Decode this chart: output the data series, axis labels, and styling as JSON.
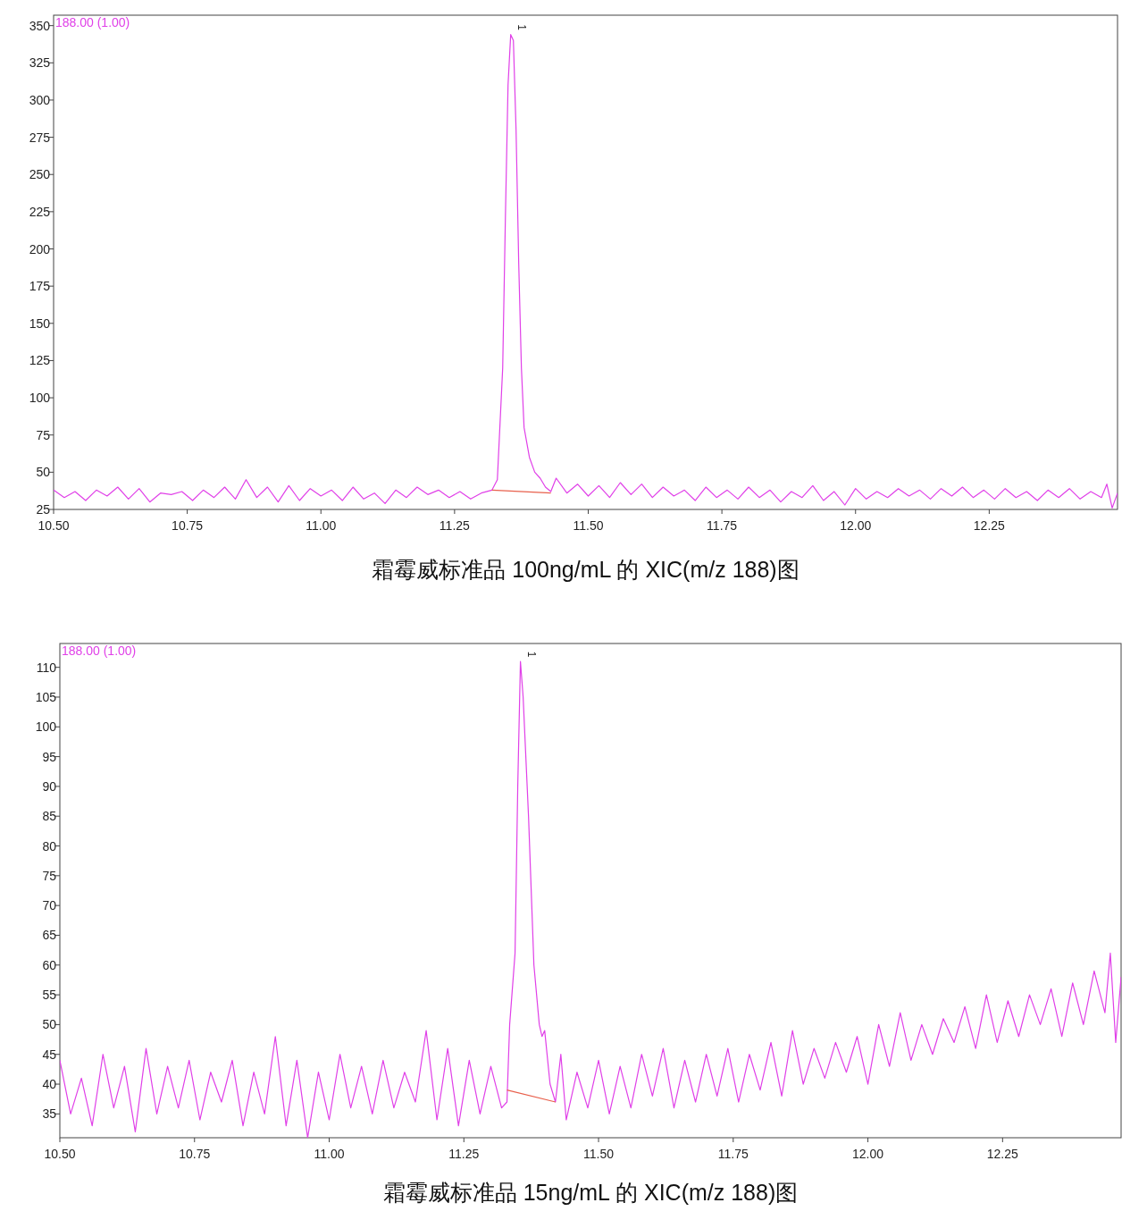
{
  "chart_data": [
    {
      "type": "line",
      "title": "霜霉威标准品 100ng/mL 的 XIC(m/z 188)图",
      "xlim": [
        10.5,
        12.49
      ],
      "ylim": [
        25,
        357
      ],
      "xticks": [
        {
          "value": 10.5,
          "label": "10.50"
        },
        {
          "value": 10.75,
          "label": "10.75"
        },
        {
          "value": 11.0,
          "label": "11.00"
        },
        {
          "value": 11.25,
          "label": "11.25"
        },
        {
          "value": 11.5,
          "label": "11.50"
        },
        {
          "value": 11.75,
          "label": "11.75"
        },
        {
          "value": 12.0,
          "label": "12.00"
        },
        {
          "value": 12.25,
          "label": "12.25"
        }
      ],
      "yticks": [
        25,
        50,
        75,
        100,
        125,
        150,
        175,
        200,
        225,
        250,
        275,
        300,
        325,
        350
      ],
      "annotations": [
        "188.00 (1.00)",
        {
          "text": "1",
          "x": 11.355,
          "y": 344
        }
      ],
      "series": [
        {
          "color": "#e040e8",
          "x": [
            10.5,
            10.52,
            10.54,
            10.56,
            10.58,
            10.6,
            10.62,
            10.64,
            10.66,
            10.68,
            10.7,
            10.72,
            10.74,
            10.76,
            10.78,
            10.8,
            10.82,
            10.84,
            10.86,
            10.88,
            10.9,
            10.92,
            10.94,
            10.96,
            10.98,
            11.0,
            11.02,
            11.04,
            11.06,
            11.08,
            11.1,
            11.12,
            11.14,
            11.16,
            11.18,
            11.2,
            11.22,
            11.24,
            11.26,
            11.28,
            11.3,
            11.32,
            11.33,
            11.34,
            11.345,
            11.35,
            11.355,
            11.36,
            11.365,
            11.37,
            11.375,
            11.38,
            11.385,
            11.39,
            11.4,
            11.41,
            11.42,
            11.43,
            11.44,
            11.46,
            11.48,
            11.5,
            11.52,
            11.54,
            11.56,
            11.58,
            11.6,
            11.62,
            11.64,
            11.66,
            11.68,
            11.7,
            11.72,
            11.74,
            11.76,
            11.78,
            11.8,
            11.82,
            11.84,
            11.86,
            11.88,
            11.9,
            11.92,
            11.94,
            11.96,
            11.98,
            12.0,
            12.02,
            12.04,
            12.06,
            12.08,
            12.1,
            12.12,
            12.14,
            12.16,
            12.18,
            12.2,
            12.22,
            12.24,
            12.26,
            12.28,
            12.3,
            12.32,
            12.34,
            12.36,
            12.38,
            12.4,
            12.42,
            12.44,
            12.46,
            12.47,
            12.48,
            12.49
          ],
          "values": [
            38,
            33,
            37,
            31,
            38,
            34,
            40,
            32,
            39,
            30,
            36,
            35,
            37,
            31,
            38,
            33,
            40,
            32,
            45,
            33,
            40,
            30,
            41,
            31,
            39,
            34,
            38,
            31,
            40,
            32,
            36,
            29,
            38,
            33,
            40,
            35,
            38,
            33,
            37,
            32,
            36,
            38,
            45,
            120,
            220,
            310,
            344,
            340,
            280,
            190,
            120,
            80,
            70,
            60,
            50,
            46,
            40,
            37,
            46,
            36,
            42,
            34,
            41,
            33,
            43,
            35,
            42,
            33,
            40,
            34,
            38,
            31,
            40,
            33,
            38,
            32,
            40,
            33,
            38,
            30,
            37,
            33,
            41,
            31,
            37,
            28,
            39,
            32,
            37,
            33,
            39,
            34,
            38,
            32,
            39,
            34,
            40,
            33,
            38,
            32,
            39,
            33,
            37,
            31,
            38,
            33,
            39,
            32,
            37,
            33,
            42,
            26,
            36
          ]
        },
        {
          "color": "#e8604c",
          "x": [
            11.32,
            11.43
          ],
          "values": [
            38,
            36
          ]
        }
      ]
    },
    {
      "type": "line",
      "title": "霜霉威标准品 15ng/mL 的 XIC(m/z 188)图",
      "xlim": [
        10.5,
        12.47
      ],
      "ylim": [
        31,
        114
      ],
      "xticks": [
        {
          "value": 10.5,
          "label": "10.50"
        },
        {
          "value": 10.75,
          "label": "10.75"
        },
        {
          "value": 11.0,
          "label": "11.00"
        },
        {
          "value": 11.25,
          "label": "11.25"
        },
        {
          "value": 11.5,
          "label": "11.50"
        },
        {
          "value": 11.75,
          "label": "11.75"
        },
        {
          "value": 12.0,
          "label": "12.00"
        },
        {
          "value": 12.25,
          "label": "12.25"
        }
      ],
      "yticks": [
        35,
        40,
        45,
        50,
        55,
        60,
        65,
        70,
        75,
        80,
        85,
        90,
        95,
        100,
        105,
        110
      ],
      "annotations": [
        "188.00 (1.00)",
        {
          "text": "1",
          "x": 11.355,
          "y": 111
        }
      ],
      "series": [
        {
          "color": "#e040e8",
          "x": [
            10.5,
            10.52,
            10.54,
            10.56,
            10.58,
            10.6,
            10.62,
            10.64,
            10.66,
            10.68,
            10.7,
            10.72,
            10.74,
            10.76,
            10.78,
            10.8,
            10.82,
            10.84,
            10.86,
            10.88,
            10.9,
            10.92,
            10.94,
            10.96,
            10.98,
            11.0,
            11.02,
            11.04,
            11.06,
            11.08,
            11.1,
            11.12,
            11.14,
            11.16,
            11.18,
            11.2,
            11.22,
            11.24,
            11.26,
            11.28,
            11.3,
            11.32,
            11.33,
            11.335,
            11.345,
            11.35,
            11.355,
            11.36,
            11.37,
            11.38,
            11.39,
            11.395,
            11.4,
            11.41,
            11.42,
            11.43,
            11.44,
            11.46,
            11.48,
            11.5,
            11.52,
            11.54,
            11.56,
            11.58,
            11.6,
            11.62,
            11.64,
            11.66,
            11.68,
            11.7,
            11.72,
            11.74,
            11.76,
            11.78,
            11.8,
            11.82,
            11.84,
            11.86,
            11.88,
            11.9,
            11.92,
            11.94,
            11.96,
            11.98,
            12.0,
            12.02,
            12.04,
            12.06,
            12.08,
            12.1,
            12.12,
            12.14,
            12.16,
            12.18,
            12.2,
            12.22,
            12.24,
            12.26,
            12.28,
            12.3,
            12.32,
            12.34,
            12.36,
            12.38,
            12.4,
            12.42,
            12.44,
            12.45,
            12.46,
            12.47
          ],
          "values": [
            44,
            35,
            41,
            33,
            45,
            36,
            43,
            32,
            46,
            35,
            43,
            36,
            44,
            34,
            42,
            37,
            44,
            33,
            42,
            35,
            48,
            33,
            44,
            31,
            42,
            34,
            45,
            36,
            43,
            35,
            44,
            36,
            42,
            37,
            49,
            34,
            46,
            33,
            44,
            35,
            43,
            36,
            37,
            50,
            62,
            90,
            111,
            105,
            85,
            60,
            50,
            48,
            49,
            40,
            37,
            45,
            34,
            42,
            36,
            44,
            35,
            43,
            36,
            45,
            38,
            46,
            36,
            44,
            37,
            45,
            38,
            46,
            37,
            45,
            39,
            47,
            38,
            49,
            40,
            46,
            41,
            47,
            42,
            48,
            40,
            50,
            43,
            52,
            44,
            50,
            45,
            51,
            47,
            53,
            46,
            55,
            47,
            54,
            48,
            55,
            50,
            56,
            48,
            57,
            50,
            59,
            52,
            62,
            47,
            58
          ]
        },
        {
          "color": "#e8604c",
          "x": [
            11.33,
            11.42
          ],
          "values": [
            39,
            37
          ]
        }
      ]
    }
  ]
}
